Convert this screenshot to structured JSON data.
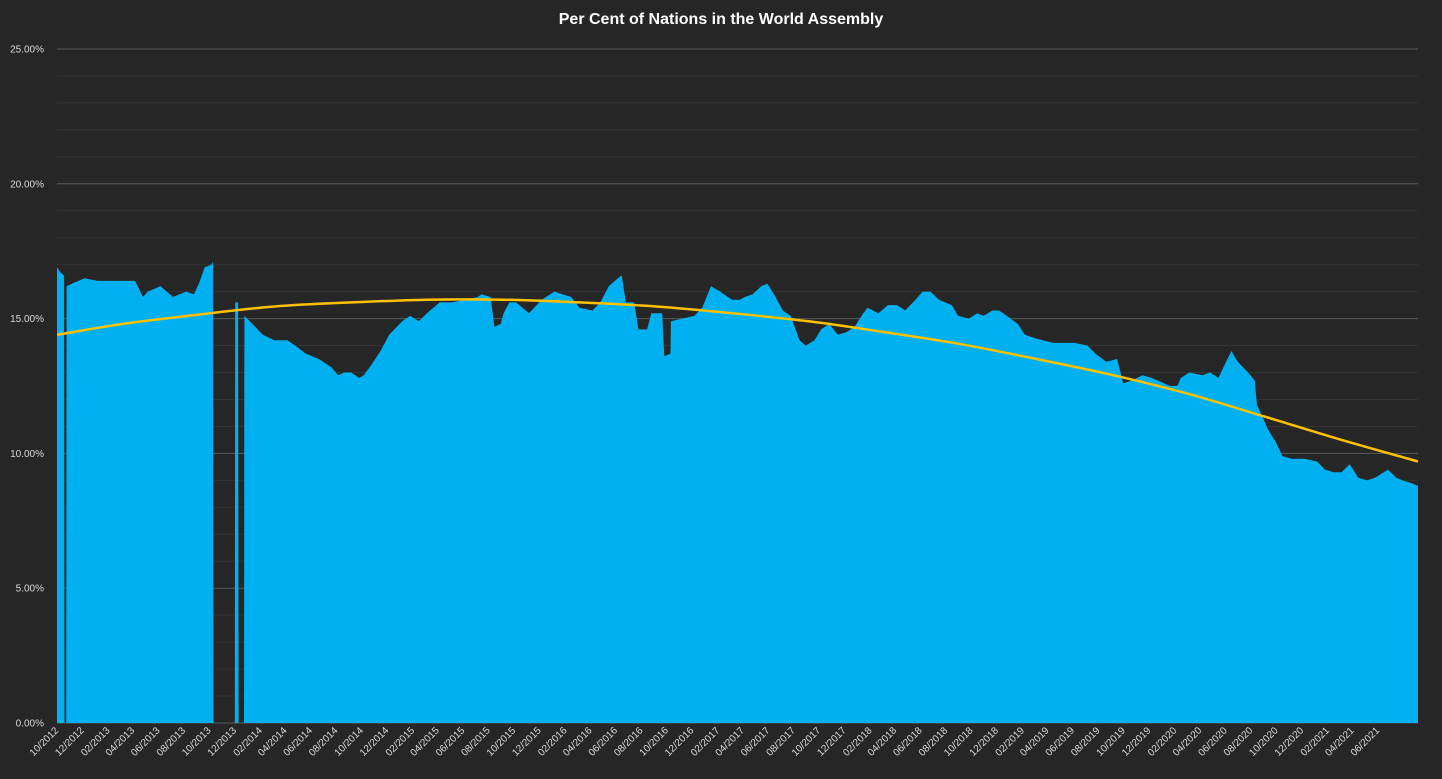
{
  "colors": {
    "background": "#262626",
    "area": "#00b0f0",
    "trend": "#ffc000",
    "major_grid": "#595959",
    "minor_grid": "#333333",
    "text": "#d9d9d9"
  },
  "chart_data": {
    "type": "area",
    "title": "Per Cent of Nations in the World Assembly",
    "xlabel": "",
    "ylabel": "",
    "ylim": [
      0,
      25
    ],
    "yticks": [
      "0.00%",
      "5.00%",
      "10.00%",
      "15.00%",
      "20.00%",
      "25.00%"
    ],
    "major_grid": true,
    "minor_grid": true,
    "legend": "none",
    "x_range": [
      "2012-09-26",
      "2021-08-31"
    ],
    "x_tick_labels": [
      "10/2012",
      "12/2012",
      "02/2013",
      "04/2013",
      "06/2013",
      "08/2013",
      "10/2013",
      "12/2013",
      "02/2014",
      "04/2014",
      "06/2014",
      "08/2014",
      "10/2014",
      "12/2014",
      "02/2015",
      "04/2015",
      "06/2015",
      "08/2015",
      "10/2015",
      "12/2015",
      "02/2016",
      "04/2016",
      "06/2016",
      "08/2016",
      "10/2016",
      "12/2016",
      "02/2017",
      "04/2017",
      "06/2017",
      "08/2017",
      "10/2017",
      "12/2017",
      "02/2018",
      "04/2018",
      "06/2018",
      "08/2018",
      "10/2018",
      "12/2018",
      "02/2019",
      "04/2019",
      "06/2019",
      "08/2019",
      "10/2019",
      "12/2019",
      "02/2020",
      "04/2020",
      "06/2020",
      "08/2020",
      "10/2020",
      "12/2020",
      "02/2021",
      "04/2021",
      "06/2021"
    ],
    "series": [
      {
        "kind": "area",
        "points": [
          [
            "2012-09-26",
            16.9
          ],
          [
            "2012-10-05",
            16.7
          ],
          [
            "2012-10-13",
            16.6
          ],
          [
            "2012-10-14",
            0
          ],
          [
            "2012-10-18",
            0
          ],
          [
            "2012-10-19",
            16.2
          ],
          [
            "2012-11-01",
            16.3
          ],
          [
            "2012-12-01",
            16.5
          ],
          [
            "2013-01-01",
            16.4
          ],
          [
            "2013-02-01",
            16.4
          ],
          [
            "2013-03-01",
            16.4
          ],
          [
            "2013-04-01",
            16.4
          ],
          [
            "2013-04-20",
            15.8
          ],
          [
            "2013-05-01",
            16.0
          ],
          [
            "2013-06-01",
            16.2
          ],
          [
            "2013-07-01",
            15.8
          ],
          [
            "2013-08-01",
            16.0
          ],
          [
            "2013-08-20",
            15.9
          ],
          [
            "2013-09-01",
            16.3
          ],
          [
            "2013-09-15",
            16.9
          ],
          [
            "2013-10-01",
            17.0
          ],
          [
            "2013-10-05",
            17.1
          ],
          [
            "2013-10-06",
            0
          ],
          [
            "2013-11-26",
            0
          ],
          [
            "2013-11-27",
            15.6
          ],
          [
            "2013-12-04",
            15.6
          ],
          [
            "2013-12-05",
            0
          ],
          [
            "2013-12-18",
            0
          ],
          [
            "2013-12-19",
            15.1
          ],
          [
            "2014-01-01",
            14.9
          ],
          [
            "2014-02-01",
            14.4
          ],
          [
            "2014-03-01",
            14.2
          ],
          [
            "2014-04-01",
            14.2
          ],
          [
            "2014-04-20",
            14.0
          ],
          [
            "2014-05-15",
            13.7
          ],
          [
            "2014-06-15",
            13.5
          ],
          [
            "2014-07-15",
            13.2
          ],
          [
            "2014-08-01",
            12.9
          ],
          [
            "2014-08-15",
            13.0
          ],
          [
            "2014-09-01",
            13.0
          ],
          [
            "2014-09-20",
            12.8
          ],
          [
            "2014-10-01",
            12.9
          ],
          [
            "2014-10-20",
            13.3
          ],
          [
            "2014-11-10",
            13.8
          ],
          [
            "2014-12-01",
            14.4
          ],
          [
            "2015-01-01",
            14.9
          ],
          [
            "2015-01-20",
            15.1
          ],
          [
            "2015-02-10",
            14.9
          ],
          [
            "2015-03-01",
            15.2
          ],
          [
            "2015-04-01",
            15.6
          ],
          [
            "2015-05-01",
            15.6
          ],
          [
            "2015-06-01",
            15.7
          ],
          [
            "2015-07-01",
            15.8
          ],
          [
            "2015-07-10",
            15.9
          ],
          [
            "2015-08-01",
            15.8
          ],
          [
            "2015-08-10",
            14.7
          ],
          [
            "2015-08-25",
            14.8
          ],
          [
            "2015-09-01",
            15.2
          ],
          [
            "2015-09-15",
            15.6
          ],
          [
            "2015-10-01",
            15.6
          ],
          [
            "2015-11-01",
            15.2
          ],
          [
            "2015-12-01",
            15.7
          ],
          [
            "2016-01-01",
            16.0
          ],
          [
            "2016-01-20",
            15.9
          ],
          [
            "2016-02-10",
            15.8
          ],
          [
            "2016-03-01",
            15.4
          ],
          [
            "2016-04-01",
            15.3
          ],
          [
            "2016-04-20",
            15.6
          ],
          [
            "2016-05-10",
            16.2
          ],
          [
            "2016-06-01",
            16.5
          ],
          [
            "2016-06-10",
            16.6
          ],
          [
            "2016-06-20",
            15.6
          ],
          [
            "2016-07-10",
            15.6
          ],
          [
            "2016-07-20",
            14.6
          ],
          [
            "2016-08-10",
            14.6
          ],
          [
            "2016-08-20",
            15.2
          ],
          [
            "2016-09-15",
            15.2
          ],
          [
            "2016-09-20",
            13.6
          ],
          [
            "2016-10-05",
            13.7
          ],
          [
            "2016-10-06",
            14.9
          ],
          [
            "2016-11-01",
            15.0
          ],
          [
            "2016-12-01",
            15.1
          ],
          [
            "2016-12-20",
            15.4
          ],
          [
            "2017-01-10",
            16.2
          ],
          [
            "2017-02-01",
            16.0
          ],
          [
            "2017-03-01",
            15.7
          ],
          [
            "2017-03-20",
            15.7
          ],
          [
            "2017-04-01",
            15.8
          ],
          [
            "2017-04-20",
            15.9
          ],
          [
            "2017-05-10",
            16.2
          ],
          [
            "2017-05-25",
            16.3
          ],
          [
            "2017-06-10",
            15.9
          ],
          [
            "2017-07-01",
            15.3
          ],
          [
            "2017-07-20",
            15.1
          ],
          [
            "2017-08-10",
            14.2
          ],
          [
            "2017-08-25",
            14.0
          ],
          [
            "2017-09-15",
            14.2
          ],
          [
            "2017-10-01",
            14.6
          ],
          [
            "2017-10-20",
            14.8
          ],
          [
            "2017-11-10",
            14.4
          ],
          [
            "2017-12-01",
            14.5
          ],
          [
            "2017-12-20",
            14.7
          ],
          [
            "2018-01-10",
            15.2
          ],
          [
            "2018-01-20",
            15.4
          ],
          [
            "2018-02-15",
            15.2
          ],
          [
            "2018-03-10",
            15.5
          ],
          [
            "2018-04-01",
            15.5
          ],
          [
            "2018-04-20",
            15.3
          ],
          [
            "2018-05-15",
            15.7
          ],
          [
            "2018-06-01",
            16.0
          ],
          [
            "2018-06-20",
            16.0
          ],
          [
            "2018-07-10",
            15.7
          ],
          [
            "2018-08-10",
            15.5
          ],
          [
            "2018-08-25",
            15.1
          ],
          [
            "2018-09-20",
            15.0
          ],
          [
            "2018-10-10",
            15.2
          ],
          [
            "2018-10-25",
            15.1
          ],
          [
            "2018-11-15",
            15.3
          ],
          [
            "2018-12-01",
            15.3
          ],
          [
            "2018-12-20",
            15.1
          ],
          [
            "2019-01-15",
            14.8
          ],
          [
            "2019-02-01",
            14.4
          ],
          [
            "2019-02-20",
            14.3
          ],
          [
            "2019-03-15",
            14.2
          ],
          [
            "2019-04-10",
            14.1
          ],
          [
            "2019-05-01",
            14.1
          ],
          [
            "2019-06-01",
            14.1
          ],
          [
            "2019-07-01",
            14.0
          ],
          [
            "2019-07-20",
            13.7
          ],
          [
            "2019-08-15",
            13.4
          ],
          [
            "2019-09-10",
            13.5
          ],
          [
            "2019-09-25",
            12.6
          ],
          [
            "2019-10-15",
            12.7
          ],
          [
            "2019-11-10",
            12.9
          ],
          [
            "2019-12-01",
            12.8
          ],
          [
            "2020-01-01",
            12.6
          ],
          [
            "2020-01-15",
            12.5
          ],
          [
            "2020-02-01",
            12.5
          ],
          [
            "2020-02-10",
            12.8
          ],
          [
            "2020-03-01",
            13.0
          ],
          [
            "2020-04-01",
            12.9
          ],
          [
            "2020-04-20",
            13.0
          ],
          [
            "2020-05-10",
            12.8
          ],
          [
            "2020-05-25",
            13.3
          ],
          [
            "2020-06-10",
            13.8
          ],
          [
            "2020-06-25",
            13.4
          ],
          [
            "2020-07-20",
            13.0
          ],
          [
            "2020-08-05",
            12.7
          ],
          [
            "2020-08-10",
            11.8
          ],
          [
            "2020-08-25",
            11.3
          ],
          [
            "2020-09-05",
            10.9
          ],
          [
            "2020-09-25",
            10.4
          ],
          [
            "2020-10-10",
            9.9
          ],
          [
            "2020-11-01",
            9.8
          ],
          [
            "2020-12-01",
            9.8
          ],
          [
            "2021-01-01",
            9.7
          ],
          [
            "2021-01-20",
            9.4
          ],
          [
            "2021-02-10",
            9.3
          ],
          [
            "2021-03-01",
            9.3
          ],
          [
            "2021-03-20",
            9.6
          ],
          [
            "2021-04-10",
            9.1
          ],
          [
            "2021-05-01",
            9.0
          ],
          [
            "2021-05-20",
            9.1
          ],
          [
            "2021-06-10",
            9.3
          ],
          [
            "2021-06-20",
            9.4
          ],
          [
            "2021-07-10",
            9.1
          ],
          [
            "2021-07-25",
            9.0
          ],
          [
            "2021-08-15",
            8.9
          ],
          [
            "2021-08-31",
            8.8
          ]
        ]
      },
      {
        "kind": "trendline",
        "points": [
          [
            "2012-09-26",
            14.4
          ],
          [
            "2013-03-01",
            14.8
          ],
          [
            "2013-09-01",
            15.15
          ],
          [
            "2014-03-01",
            15.45
          ],
          [
            "2014-09-01",
            15.6
          ],
          [
            "2015-03-01",
            15.7
          ],
          [
            "2015-09-01",
            15.7
          ],
          [
            "2016-03-01",
            15.6
          ],
          [
            "2016-09-01",
            15.45
          ],
          [
            "2017-03-01",
            15.2
          ],
          [
            "2017-09-01",
            14.9
          ],
          [
            "2018-03-01",
            14.5
          ],
          [
            "2018-09-01",
            14.05
          ],
          [
            "2019-03-01",
            13.5
          ],
          [
            "2019-09-01",
            12.9
          ],
          [
            "2020-03-01",
            12.2
          ],
          [
            "2020-09-01",
            11.35
          ],
          [
            "2021-03-01",
            10.5
          ],
          [
            "2021-08-31",
            9.7
          ]
        ]
      }
    ]
  }
}
